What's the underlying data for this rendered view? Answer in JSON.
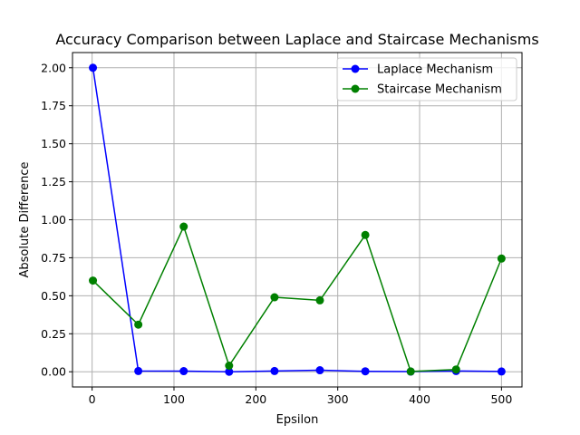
{
  "chart_data": {
    "type": "line",
    "title": "Accuracy Comparison between Laplace and Staircase Mechanisms",
    "xlabel": "Epsilon",
    "ylabel": "Absolute Difference",
    "xlim": [
      -23.95,
      525.05
    ],
    "ylim": [
      -0.1,
      2.1
    ],
    "xticks": [
      0,
      100,
      200,
      300,
      400,
      500
    ],
    "xtick_labels": [
      "0",
      "100",
      "200",
      "300",
      "400",
      "500"
    ],
    "yticks": [
      0.0,
      0.25,
      0.5,
      0.75,
      1.0,
      1.25,
      1.5,
      1.75,
      2.0
    ],
    "ytick_labels": [
      "0.00",
      "0.25",
      "0.50",
      "0.75",
      "1.00",
      "1.25",
      "1.50",
      "1.75",
      "2.00"
    ],
    "grid": true,
    "legend_position": "top-right",
    "x": [
      1,
      56.44,
      111.89,
      167.33,
      222.78,
      278.22,
      333.67,
      389.11,
      444.56,
      500
    ],
    "series": [
      {
        "name": "Laplace Mechanism",
        "color": "#0000ff",
        "marker": "circle",
        "values": [
          2.0,
          0.005,
          0.004,
          0.0,
          0.005,
          0.01,
          0.003,
          0.001,
          0.005,
          0.002
        ]
      },
      {
        "name": "Staircase Mechanism",
        "color": "#008000",
        "marker": "circle",
        "values": [
          0.6,
          0.31,
          0.955,
          0.04,
          0.49,
          0.47,
          0.9,
          0.002,
          0.015,
          0.745
        ]
      }
    ]
  }
}
